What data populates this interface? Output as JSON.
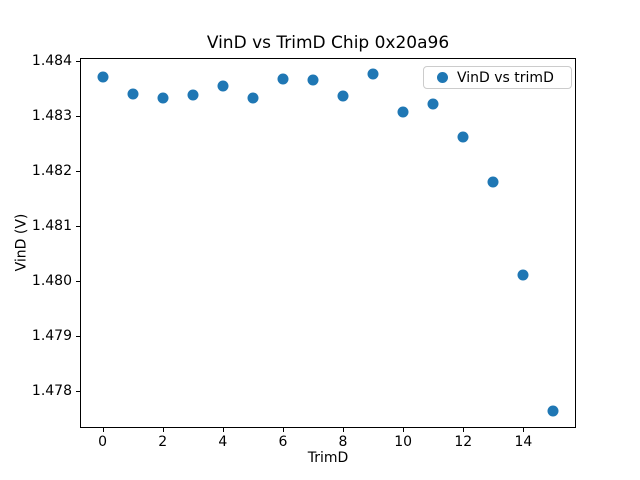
{
  "chart_data": {
    "type": "scatter",
    "title": "VinD vs TrimD Chip 0x20a96",
    "xlabel": "TrimD",
    "ylabel": "VinD (V)",
    "legend": {
      "label": "VinD vs trimD",
      "position": "upper right"
    },
    "marker_color": "#1f77b4",
    "grid": false,
    "x": [
      0,
      1,
      2,
      3,
      4,
      5,
      6,
      7,
      8,
      9,
      10,
      11,
      12,
      13,
      14,
      15
    ],
    "y": [
      1.4837,
      1.4834,
      1.48332,
      1.48337,
      1.48354,
      1.48332,
      1.48367,
      1.48365,
      1.48335,
      1.48375,
      1.48306,
      1.48322,
      1.48261,
      1.4818,
      1.48011,
      1.47764
    ],
    "xlim": [
      -0.75,
      15.75
    ],
    "ylim": [
      1.477325,
      1.484048
    ],
    "x_ticks": [
      0,
      2,
      4,
      6,
      8,
      10,
      12,
      14
    ],
    "x_tick_labels": [
      "0",
      "2",
      "4",
      "6",
      "8",
      "10",
      "12",
      "14"
    ],
    "y_ticks": [
      1.478,
      1.479,
      1.48,
      1.481,
      1.482,
      1.483,
      1.484
    ],
    "y_tick_labels": [
      "1.478",
      "1.479",
      "1.480",
      "1.481",
      "1.482",
      "1.483",
      "1.484"
    ]
  }
}
